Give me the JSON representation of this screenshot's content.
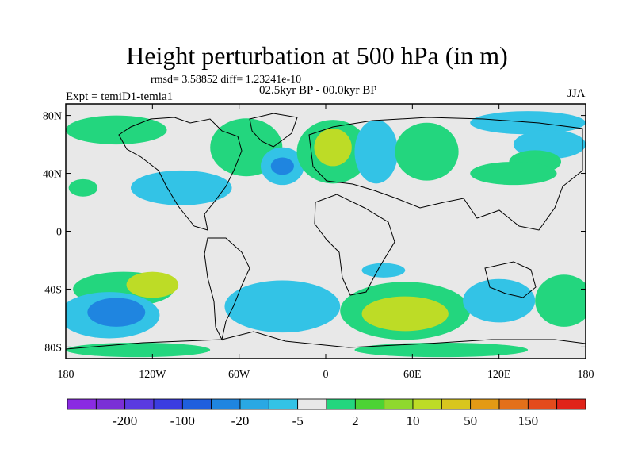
{
  "title": "Height perturbation at 500 hPa (in m)",
  "stats_line": "rmsd= 3.58852 diff= 1.23241e-10",
  "experiment": "Expt = temiD1-temia1",
  "period": "02.5kyr BP - 00.0kyr BP",
  "season": "JJA",
  "lat_ticks": [
    {
      "lat": 80,
      "label": "80N"
    },
    {
      "lat": 40,
      "label": "40N"
    },
    {
      "lat": 0,
      "label": "0"
    },
    {
      "lat": -40,
      "label": "40S"
    },
    {
      "lat": -80,
      "label": "80S"
    }
  ],
  "lon_ticks": [
    {
      "lon": -180,
      "label": "180"
    },
    {
      "lon": -120,
      "label": "120W"
    },
    {
      "lon": -60,
      "label": "60W"
    },
    {
      "lon": 0,
      "label": "0"
    },
    {
      "lon": 60,
      "label": "60E"
    },
    {
      "lon": 120,
      "label": "120E"
    },
    {
      "lon": 180,
      "label": "180"
    }
  ],
  "colorbar": {
    "colors": [
      "#8a2be2",
      "#7a2fd6",
      "#5a3ae0",
      "#3b3de0",
      "#1f5fdd",
      "#1f85e0",
      "#29a8e3",
      "#33c3e6",
      "#e8e8e8",
      "#23d67e",
      "#4cd335",
      "#8fd82e",
      "#bddc26",
      "#d8c61e",
      "#e39a15",
      "#e3701a",
      "#e34b1c",
      "#e02319"
    ],
    "labels": [
      {
        "after_bin": 1,
        "text": "-200"
      },
      {
        "after_bin": 3,
        "text": "-100"
      },
      {
        "after_bin": 5,
        "text": "-20"
      },
      {
        "after_bin": 7,
        "text": "-5"
      },
      {
        "after_bin": 9,
        "text": "2"
      },
      {
        "after_bin": 11,
        "text": "10"
      },
      {
        "after_bin": 13,
        "text": "50"
      },
      {
        "after_bin": 15,
        "text": "150"
      }
    ]
  },
  "fields": [
    {
      "lon": -145,
      "lat": 70,
      "rlon": 35,
      "rlat": 10,
      "level": 1
    },
    {
      "lon": -55,
      "lat": 58,
      "rlon": 25,
      "rlat": 20,
      "level": 1
    },
    {
      "lon": -100,
      "lat": 30,
      "rlon": 35,
      "rlat": 12,
      "level": -1
    },
    {
      "lon": -30,
      "lat": 45,
      "rlon": 15,
      "rlat": 13,
      "level": -1
    },
    {
      "lon": -30,
      "lat": 45,
      "rlon": 8,
      "rlat": 6,
      "level": -2
    },
    {
      "lon": 5,
      "lat": 55,
      "rlon": 25,
      "rlat": 22,
      "level": 1
    },
    {
      "lon": 5,
      "lat": 58,
      "rlon": 13,
      "rlat": 13,
      "level": 2
    },
    {
      "lon": 35,
      "lat": 55,
      "rlon": 15,
      "rlat": 22,
      "level": -1
    },
    {
      "lon": 70,
      "lat": 55,
      "rlon": 22,
      "rlat": 20,
      "level": 1
    },
    {
      "lon": 140,
      "lat": 75,
      "rlon": 40,
      "rlat": 8,
      "level": -1
    },
    {
      "lon": 155,
      "lat": 60,
      "rlon": 25,
      "rlat": 10,
      "level": -1
    },
    {
      "lon": 145,
      "lat": 48,
      "rlon": 18,
      "rlat": 8,
      "level": 1
    },
    {
      "lon": 130,
      "lat": 40,
      "rlon": 30,
      "rlat": 8,
      "level": 1
    },
    {
      "lon": -168,
      "lat": 30,
      "rlon": 10,
      "rlat": 6,
      "level": 1
    },
    {
      "lon": -140,
      "lat": -40,
      "rlon": 35,
      "rlat": 12,
      "level": 1
    },
    {
      "lon": -120,
      "lat": -37,
      "rlon": 18,
      "rlat": 9,
      "level": 2
    },
    {
      "lon": -150,
      "lat": -58,
      "rlon": 35,
      "rlat": 16,
      "level": -1
    },
    {
      "lon": -145,
      "lat": -56,
      "rlon": 20,
      "rlat": 10,
      "level": -2
    },
    {
      "lon": -30,
      "lat": -52,
      "rlon": 40,
      "rlat": 18,
      "level": -1
    },
    {
      "lon": 55,
      "lat": -55,
      "rlon": 45,
      "rlat": 20,
      "level": 1
    },
    {
      "lon": 55,
      "lat": -57,
      "rlon": 30,
      "rlat": 12,
      "level": 2
    },
    {
      "lon": 40,
      "lat": -27,
      "rlon": 15,
      "rlat": 5,
      "level": -1
    },
    {
      "lon": 120,
      "lat": -48,
      "rlon": 25,
      "rlat": 15,
      "level": -1
    },
    {
      "lon": 165,
      "lat": -48,
      "rlon": 20,
      "rlat": 18,
      "level": 1
    },
    {
      "lon": 80,
      "lat": -82,
      "rlon": 60,
      "rlat": 5,
      "level": 1
    },
    {
      "lon": -130,
      "lat": -82,
      "rlon": 50,
      "rlat": 5,
      "level": 1
    }
  ]
}
